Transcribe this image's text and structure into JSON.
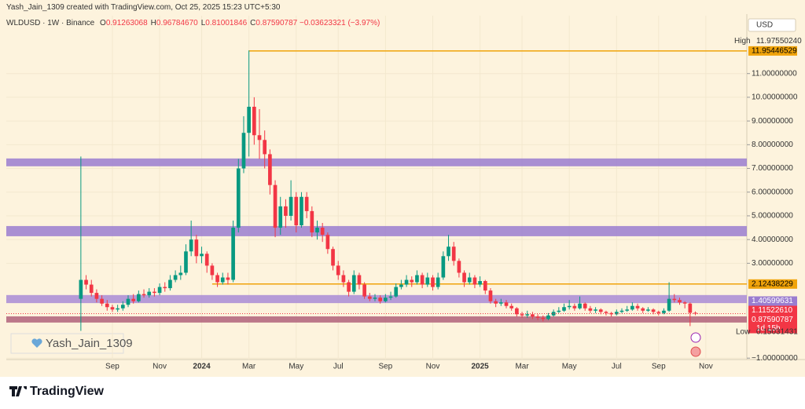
{
  "header": {
    "caption": "Yash_Jain_1309 created with TradingView.com, Oct 25, 2025 15:23 UTC+5:30"
  },
  "chart_data": {
    "type": "candlestick",
    "symbol": "WLDUSD · 1W · Binance",
    "ohlc_labels": [
      "O",
      "H",
      "L",
      "C"
    ],
    "last_bar": [
      {
        "value": 0.91263068,
        "label": "0.91263068"
      },
      {
        "value": 0.9678467,
        "label": "0.96784670"
      },
      {
        "value": 0.81001846,
        "label": "0.81001846"
      },
      {
        "value": 0.87590787,
        "label": "0.87590787"
      }
    ],
    "change": {
      "value": -0.03623321,
      "label": "−0.03623321"
    },
    "change_pct": {
      "value": -3.97,
      "label": "(−3.97%)"
    },
    "currency": "USD",
    "open": [
      1.5,
      2.3,
      2.1,
      1.75,
      1.5,
      1.3,
      1.15,
      1.05,
      1.1,
      1.25,
      1.5,
      1.4,
      1.7,
      1.65,
      1.8,
      1.75,
      2.0,
      1.95,
      2.3,
      2.5,
      2.6,
      3.5,
      4.0,
      3.3,
      3.4,
      2.9,
      2.5,
      2.2,
      2.4,
      2.3,
      4.5,
      7.0,
      8.5,
      9.6,
      8.4,
      8.2,
      7.6,
      6.3,
      4.5,
      5.4,
      5.0,
      5.8,
      4.6,
      5.8,
      5.2,
      4.3,
      4.5,
      4.2,
      3.6,
      2.9,
      2.5,
      2.2,
      1.8,
      2.5,
      2.1,
      1.6,
      1.5,
      1.55,
      1.4,
      1.55,
      1.6,
      2.0,
      2.1,
      2.3,
      2.2,
      2.5,
      2.1,
      2.4,
      2.0,
      2.4,
      3.3,
      3.7,
      3.1,
      2.6,
      2.2,
      2.4,
      2.1,
      2.25,
      1.85,
      1.4,
      1.3,
      1.35,
      1.2,
      1.1,
      0.85,
      0.8,
      0.85,
      0.75,
      0.7,
      0.65,
      0.8,
      0.95,
      1.0,
      1.15,
      1.2,
      1.1,
      1.3,
      1.1,
      1.0,
      1.05,
      0.95,
      0.9,
      0.85,
      0.95,
      1.0,
      1.05,
      1.2,
      1.1,
      1.0,
      1.05,
      0.95,
      0.9,
      1.0,
      1.5,
      1.45,
      1.35,
      1.3,
      0.91263068
    ],
    "high": [
      7.5,
      2.5,
      2.3,
      1.9,
      1.65,
      1.45,
      1.25,
      1.25,
      1.4,
      1.65,
      1.7,
      1.85,
      1.9,
      1.95,
      1.95,
      2.15,
      2.2,
      2.5,
      2.7,
      2.9,
      3.8,
      4.8,
      4.2,
      3.7,
      3.5,
      3.0,
      2.6,
      2.6,
      2.6,
      4.8,
      7.4,
      9.2,
      11.9755024,
      10.0,
      9.5,
      8.6,
      7.8,
      6.5,
      5.8,
      5.7,
      6.5,
      6.0,
      6.0,
      6.0,
      5.4,
      4.8,
      4.7,
      4.3,
      3.7,
      3.1,
      2.7,
      2.3,
      2.7,
      2.6,
      2.2,
      1.75,
      1.7,
      1.65,
      1.7,
      1.8,
      2.15,
      2.3,
      2.5,
      2.45,
      2.7,
      2.6,
      2.6,
      2.5,
      2.6,
      3.5,
      4.2,
      3.9,
      3.2,
      2.7,
      2.6,
      2.5,
      2.45,
      2.3,
      1.95,
      1.5,
      1.5,
      1.45,
      1.3,
      1.15,
      0.95,
      1.0,
      0.95,
      0.85,
      0.8,
      0.9,
      1.05,
      1.15,
      1.3,
      1.45,
      1.3,
      1.6,
      1.35,
      1.2,
      1.15,
      1.1,
      1.0,
      0.95,
      1.05,
      1.1,
      1.2,
      1.35,
      1.3,
      1.15,
      1.15,
      1.1,
      1.0,
      1.1,
      2.2,
      1.7,
      1.55,
      1.4,
      1.35,
      0.9678467
    ],
    "low": [
      0.15031431,
      1.9,
      1.6,
      1.35,
      1.2,
      1.0,
      0.95,
      0.95,
      1.0,
      1.15,
      1.3,
      1.35,
      1.55,
      1.55,
      1.6,
      1.65,
      1.8,
      1.85,
      2.2,
      2.3,
      2.5,
      3.3,
      3.0,
      3.0,
      2.6,
      2.3,
      2.0,
      2.1,
      2.1,
      2.2,
      4.3,
      6.8,
      7.5,
      8.0,
      7.4,
      7.0,
      5.9,
      4.1,
      4.2,
      4.5,
      4.8,
      4.3,
      4.5,
      4.9,
      4.1,
      4.0,
      3.9,
      3.4,
      2.7,
      2.3,
      2.0,
      1.6,
      1.7,
      1.9,
      1.5,
      1.4,
      1.4,
      1.3,
      1.35,
      1.45,
      1.55,
      1.9,
      2.0,
      2.0,
      2.1,
      1.95,
      2.0,
      1.85,
      1.9,
      2.3,
      3.1,
      2.9,
      2.4,
      2.0,
      2.1,
      1.95,
      2.0,
      1.7,
      1.3,
      1.15,
      1.2,
      1.1,
      1.0,
      0.75,
      0.7,
      0.7,
      0.65,
      0.6,
      0.55,
      0.6,
      0.75,
      0.9,
      0.95,
      1.05,
      1.0,
      1.05,
      1.0,
      0.9,
      0.9,
      0.85,
      0.8,
      0.75,
      0.8,
      0.9,
      0.95,
      1.0,
      1.0,
      0.9,
      0.95,
      0.85,
      0.8,
      0.85,
      0.95,
      1.35,
      1.25,
      1.1,
      0.35,
      0.81001846
    ],
    "close": [
      2.3,
      2.1,
      1.75,
      1.5,
      1.3,
      1.15,
      1.05,
      1.1,
      1.25,
      1.5,
      1.4,
      1.7,
      1.65,
      1.8,
      1.75,
      2.0,
      1.95,
      2.3,
      2.5,
      2.6,
      3.5,
      4.0,
      3.3,
      3.4,
      2.9,
      2.5,
      2.2,
      2.4,
      2.3,
      4.5,
      7.0,
      8.5,
      9.6,
      8.4,
      8.2,
      7.6,
      6.3,
      4.5,
      5.4,
      5.0,
      5.8,
      4.6,
      5.8,
      5.2,
      4.3,
      4.5,
      4.2,
      3.6,
      2.9,
      2.5,
      2.2,
      1.8,
      2.5,
      2.1,
      1.6,
      1.5,
      1.55,
      1.4,
      1.55,
      1.6,
      2.0,
      2.1,
      2.3,
      2.2,
      2.5,
      2.1,
      2.4,
      2.0,
      2.4,
      3.3,
      3.7,
      3.1,
      2.6,
      2.2,
      2.4,
      2.1,
      2.25,
      1.85,
      1.4,
      1.3,
      1.35,
      1.2,
      1.1,
      0.85,
      0.8,
      0.85,
      0.75,
      0.7,
      0.65,
      0.8,
      0.95,
      1.0,
      1.15,
      1.2,
      1.1,
      1.3,
      1.1,
      1.0,
      1.05,
      0.95,
      0.9,
      0.85,
      0.95,
      1.0,
      1.05,
      1.2,
      1.1,
      1.0,
      1.05,
      0.95,
      0.9,
      1.0,
      1.5,
      1.45,
      1.35,
      1.3,
      0.912,
      0.87590787
    ],
    "up_color": "#089981",
    "down_color": "#f23645",
    "xlim": [
      -14.2,
      126.8
    ],
    "xticks": [
      {
        "value": 6,
        "label": "Sep"
      },
      {
        "value": 15,
        "label": "Nov"
      },
      {
        "value": 23,
        "label": "2024"
      },
      {
        "value": 32,
        "label": "Mar"
      },
      {
        "value": 41,
        "label": "May"
      },
      {
        "value": 49,
        "label": "Jul"
      },
      {
        "value": 58,
        "label": "Sep"
      },
      {
        "value": 67,
        "label": "Nov"
      },
      {
        "value": 76,
        "label": "2025"
      },
      {
        "value": 84,
        "label": "Mar"
      },
      {
        "value": 93,
        "label": "May"
      },
      {
        "value": 102,
        "label": "Jul"
      },
      {
        "value": 110,
        "label": "Sep"
      },
      {
        "value": 119,
        "label": "Nov"
      }
    ],
    "ylim": [
      -1.06,
      13.44
    ],
    "yticks": [
      {
        "value": -1,
        "label": "−1.00000000"
      },
      {
        "value": 3,
        "label": "3.00000000"
      },
      {
        "value": 4,
        "label": "4.00000000"
      },
      {
        "value": 5,
        "label": "5.00000000"
      },
      {
        "value": 6,
        "label": "6.00000000"
      },
      {
        "value": 7,
        "label": "7.00000000"
      },
      {
        "value": 8,
        "label": "8.00000000"
      },
      {
        "value": 9,
        "label": "9.00000000"
      },
      {
        "value": 10,
        "label": "10.00000000"
      },
      {
        "value": 11,
        "label": "11.00000000"
      }
    ],
    "zones": [
      {
        "from": 7.09,
        "to": 7.42,
        "color": "#9a7dd0"
      },
      {
        "from": 4.14,
        "to": 4.57,
        "color": "#9a7dd0"
      },
      {
        "from": 1.32,
        "to": 1.66,
        "color": "#a98bd6"
      },
      {
        "from": 0.5,
        "to": 0.76,
        "color": "#b0607a"
      }
    ],
    "levels": [
      {
        "value": 11.95446529,
        "label": "11.95446529",
        "x0": 32,
        "color": "#f0a30a"
      },
      {
        "value": 2.12438229,
        "label": "2.12438229",
        "x0": 25,
        "color": "#f0a30a"
      }
    ],
    "price_labels": [
      {
        "value": 1.40599631,
        "label": "1.40599631",
        "color": "#9a7dd0"
      },
      {
        "value": 1.1152261,
        "label": "1.11522610",
        "color": "#f23645"
      },
      {
        "value": 0.87590787,
        "label": "0.87590787",
        "color": "#f23645",
        "countdown": "1d 15h"
      }
    ],
    "high_label": "High",
    "range_high": {
      "value": 11.9755024,
      "label": "11.97550240"
    },
    "low_label": "Low",
    "range_low": 0.15031431,
    "watermark": "Yash_Jain_1309"
  },
  "footer": {
    "brand": "TradingView"
  }
}
